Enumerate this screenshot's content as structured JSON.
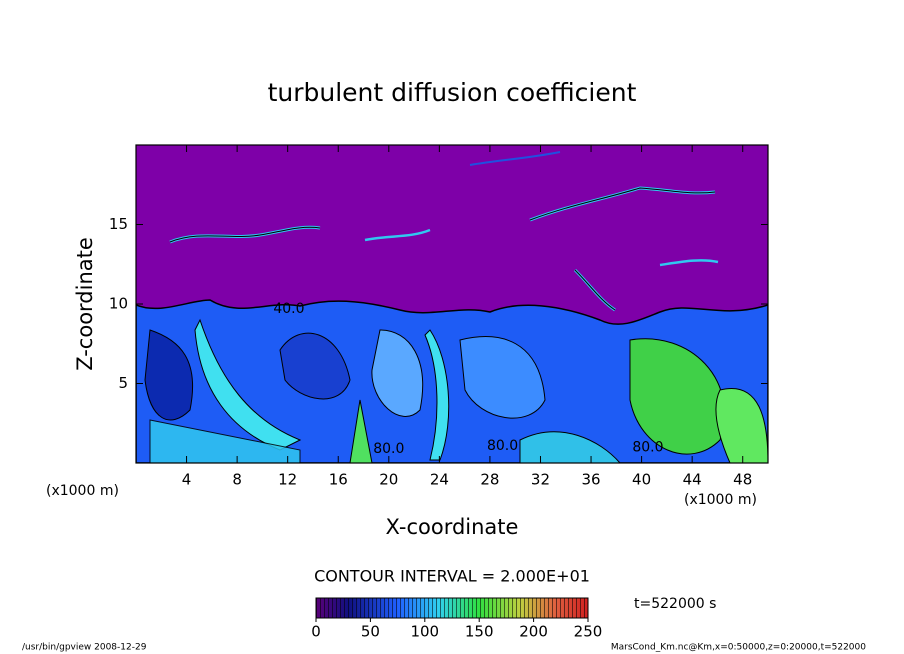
{
  "chart_data": {
    "type": "contour",
    "title": "turbulent diffusion coefficient",
    "xlabel": "X-coordinate",
    "ylabel": "Z-coordinate",
    "xunit": "(x1000 m)",
    "yunit": "(x1000 m)",
    "xlim": [
      0,
      50
    ],
    "ylim": [
      0,
      20
    ],
    "xticks": [
      4,
      8,
      12,
      16,
      20,
      24,
      28,
      32,
      36,
      40,
      44,
      48
    ],
    "yticks": [
      5,
      10,
      15
    ],
    "contour_interval": "CONTOUR INTERVAL = 2.000E+01",
    "time": "t=522000 s",
    "clim": [
      0,
      250
    ],
    "cticks": [
      0,
      50,
      100,
      150,
      200,
      250
    ],
    "annotations": [
      {
        "text": "80.0",
        "x": 20,
        "y": 0.5
      },
      {
        "text": "80.0",
        "x": 29,
        "y": 0.7
      },
      {
        "text": "80.0",
        "x": 40.5,
        "y": 0.6
      },
      {
        "text": "40.0",
        "x": 12.1,
        "y": 9.3
      }
    ]
  },
  "footer": {
    "left": "/usr/bin/gpview  2008-12-29",
    "right": "MarsCond_Km.nc@Km,x=0:50000,z=0:20000,t=522000"
  }
}
